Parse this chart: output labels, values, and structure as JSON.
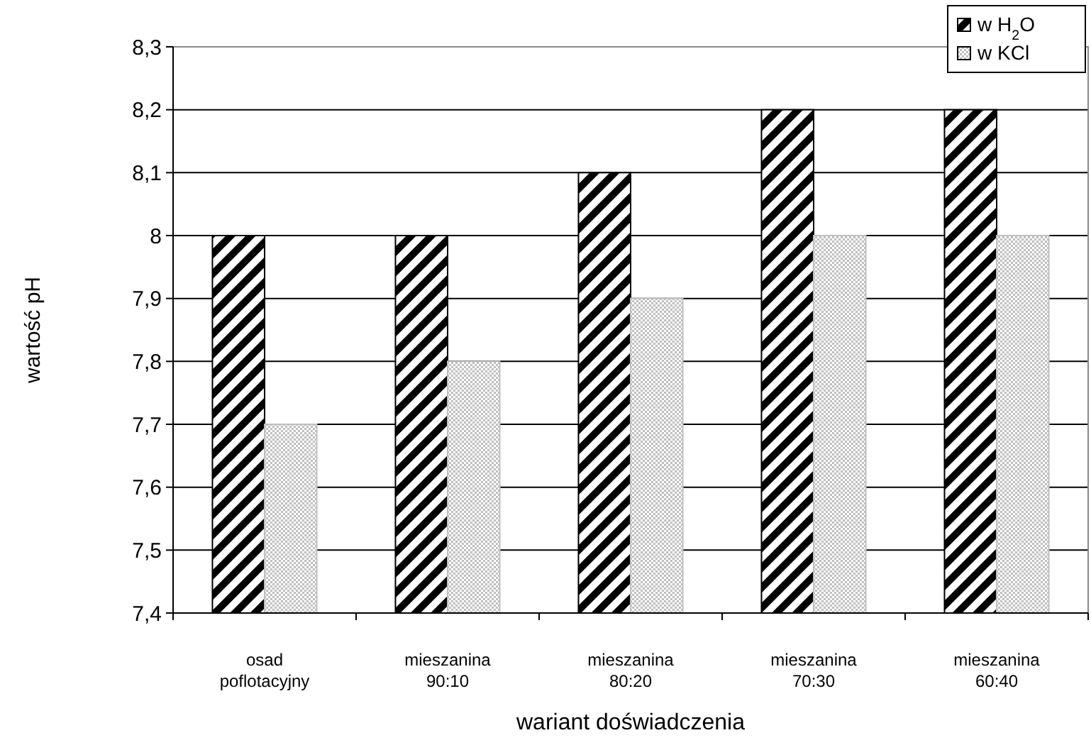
{
  "chart_data": {
    "type": "bar",
    "xlabel": "wariant doświadczenia",
    "ylabel": "wartość pH",
    "categories": [
      "osad poflotacyjny",
      "mieszanina 90:10",
      "mieszanina 80:20",
      "mieszanina 70:30",
      "mieszanina 60:40"
    ],
    "series": [
      {
        "name": "w H$_{2}$O",
        "color": "#000000",
        "values": [
          8,
          8,
          8.1,
          8.2,
          8.2
        ]
      },
      {
        "name": "w KCl",
        "color": "#bfbfbf",
        "values": [
          7.7,
          7.8,
          7.9,
          8,
          8
        ]
      }
    ],
    "ylim": [
      7.4,
      8.3
    ],
    "yticks": [
      {
        "value": 7.4,
        "label": "7,4"
      },
      {
        "value": 7.5,
        "label": "7,5"
      },
      {
        "value": 7.6,
        "label": "7,6"
      },
      {
        "value": 7.7,
        "label": "7,7"
      },
      {
        "value": 7.8,
        "label": "7,8"
      },
      {
        "value": 7.9,
        "label": "7,9"
      },
      8,
      {
        "value": 8.1,
        "label": "8,1"
      },
      {
        "value": 8.2,
        "label": "8,2"
      },
      {
        "value": 8.3,
        "label": "8,3"
      }
    ],
    "grid": "y",
    "legend": "top right"
  }
}
